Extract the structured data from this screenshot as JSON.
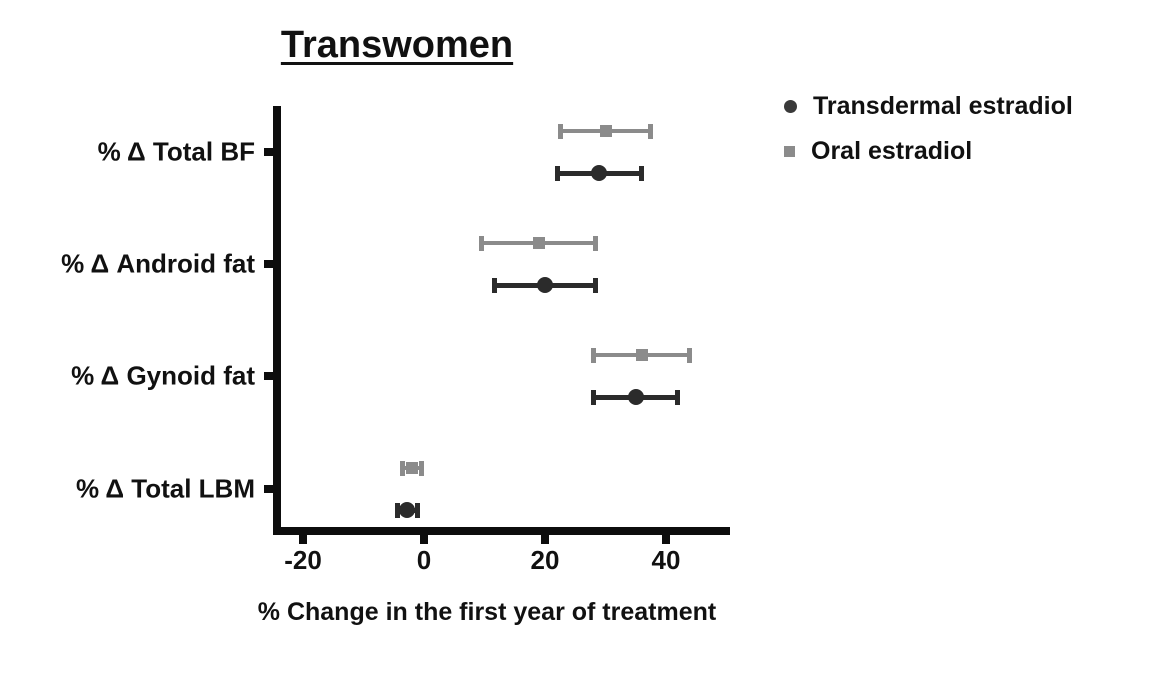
{
  "title": "Transwomen",
  "legend": {
    "items": [
      {
        "label": "Transdermal estradiol",
        "marker": "circle-icon",
        "color": "#3a3a3a"
      },
      {
        "label": "Oral estradiol",
        "marker": "square-icon",
        "color": "#8b8b8b"
      }
    ]
  },
  "chart_data": {
    "type": "scatter",
    "subtype": "horizontal dot plot with error bars (forest plot)",
    "title": "Transwomen",
    "xlabel": "% Change in the first year of treatment",
    "ylabel": "",
    "xlim": [
      -25,
      50
    ],
    "xticks": [
      -20,
      0,
      20,
      40
    ],
    "grid": false,
    "legend_position": "top-right",
    "categories": [
      "% Δ Total BF",
      "% Δ Android fat",
      "% Δ Gynoid fat",
      "% Δ Total LBM"
    ],
    "series": [
      {
        "name": "Transdermal estradiol",
        "marker": "circle",
        "color": "#2b2b2b",
        "values": [
          29,
          20,
          35,
          -2.8
        ],
        "ci_low": [
          22,
          11.5,
          28,
          -4.5
        ],
        "ci_high": [
          36,
          28.5,
          42,
          -1
        ]
      },
      {
        "name": "Oral estradiol",
        "marker": "square",
        "color": "#8b8b8b",
        "values": [
          30,
          19,
          36,
          -2
        ],
        "ci_low": [
          22.5,
          9.5,
          28,
          -3.7
        ],
        "ci_high": [
          37.5,
          28.5,
          44,
          -0.4
        ]
      }
    ]
  }
}
